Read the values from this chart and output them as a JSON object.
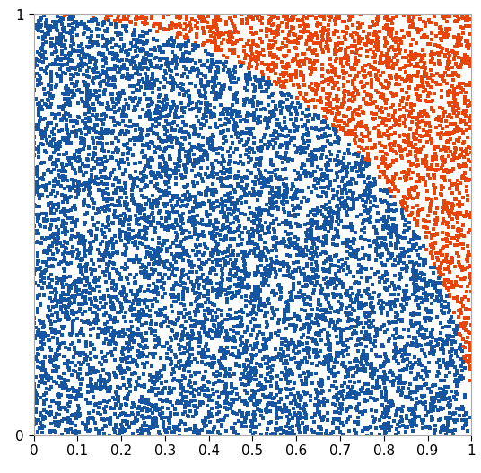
{
  "n_points": 10000,
  "seed": 42,
  "inside_color": "#1655a2",
  "outside_color": "#e8450a",
  "marker": "s",
  "marker_size": 9,
  "xlim": [
    0,
    1
  ],
  "ylim": [
    0,
    1
  ],
  "xticks": [
    0,
    0.1,
    0.2,
    0.3,
    0.4,
    0.5,
    0.6,
    0.7,
    0.8,
    0.9,
    1.0
  ],
  "yticks": [
    0,
    1
  ],
  "background_color": "#ffffff",
  "figsize": [
    5.36,
    5.27
  ],
  "dpi": 100,
  "tick_labelsize": 11,
  "spine_color": "#aaaaaa"
}
